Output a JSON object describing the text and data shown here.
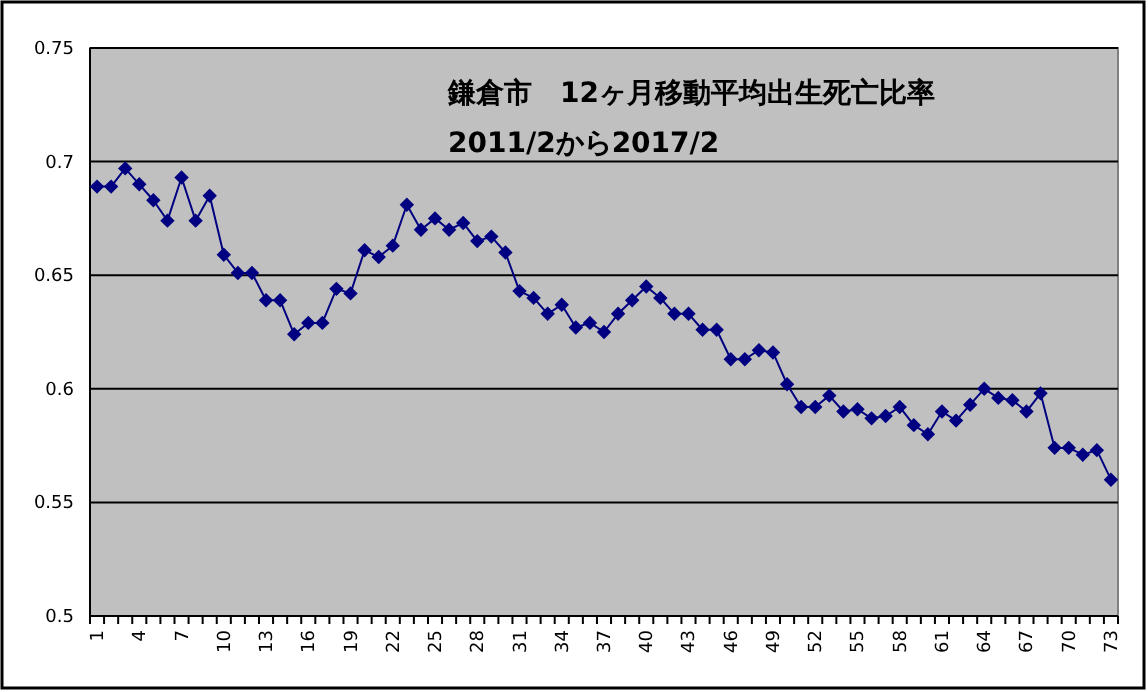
{
  "chart_data": {
    "type": "line",
    "title": "鎌倉市　12ヶ月移動平均出生死亡比率",
    "subtitle": "2011/2から2017/2",
    "categories": [
      "1",
      null,
      null,
      "4",
      null,
      null,
      "7",
      null,
      null,
      "10",
      null,
      null,
      "13",
      null,
      null,
      "16",
      null,
      null,
      "19",
      null,
      null,
      "22",
      null,
      null,
      "25",
      null,
      null,
      "28",
      null,
      null,
      "31",
      null,
      null,
      "34",
      null,
      null,
      "37",
      null,
      null,
      "40",
      null,
      null,
      "43",
      null,
      null,
      "46",
      null,
      null,
      "49",
      null,
      null,
      "52",
      null,
      null,
      "55",
      null,
      null,
      "58",
      null,
      null,
      "61",
      null,
      null,
      "64",
      null,
      null,
      "67",
      null,
      null,
      "70",
      null,
      null,
      "73"
    ],
    "series": [
      {
        "color": "#000080",
        "values": [
          0.689,
          0.689,
          0.697,
          0.69,
          0.683,
          0.674,
          0.693,
          0.674,
          0.685,
          0.659,
          0.651,
          0.651,
          0.639,
          0.639,
          0.624,
          0.629,
          0.629,
          0.644,
          0.642,
          0.661,
          0.658,
          0.663,
          0.681,
          0.67,
          0.675,
          0.67,
          0.673,
          0.665,
          0.667,
          0.66,
          0.643,
          0.64,
          0.633,
          0.637,
          0.627,
          0.629,
          0.625,
          0.633,
          0.639,
          0.645,
          0.64,
          0.633,
          0.633,
          0.626,
          0.626,
          0.613,
          0.613,
          0.617,
          0.616,
          0.602,
          0.592,
          0.592,
          0.597,
          0.59,
          0.591,
          0.587,
          0.588,
          0.592,
          0.584,
          0.58,
          0.59,
          0.586,
          0.593,
          0.6,
          0.596,
          0.595,
          0.59,
          0.598,
          0.574,
          0.574,
          0.571,
          0.573,
          0.56
        ]
      }
    ],
    "ylim": [
      0.5,
      0.75
    ],
    "yticks": [
      0.5,
      0.55,
      0.6,
      0.65,
      0.7,
      0.75
    ],
    "grid": "y",
    "marker": "diamond",
    "line_style": "solid"
  }
}
